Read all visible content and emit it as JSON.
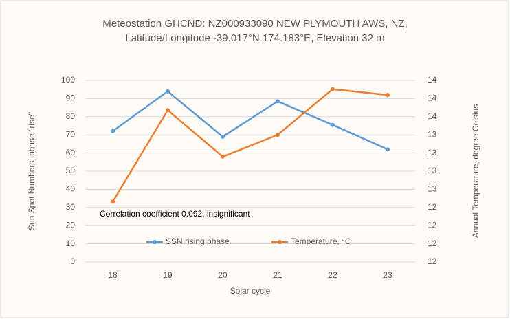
{
  "chart_data": {
    "type": "line",
    "title": [
      "Meteostation GHCND: NZ000933090  NEW PLYMOUTH AWS, NZ,",
      "Latitude/Longitude -39.017°N 174.183°E, Elevation 32 m"
    ],
    "x_label": "Solar cycle",
    "y_label": "Sun Spot Numbers, phase \"rise\"",
    "y2_label": "Annual Temperature, degree Celsius",
    "annotation": "Correlation coefficient 0.092,  insignificant",
    "categories": [
      "18",
      "19",
      "20",
      "21",
      "22",
      "23"
    ],
    "series": [
      {
        "name": "SSN rising phase",
        "color": "#5b9bd5",
        "values": [
          72,
          94,
          69,
          88.5,
          75.5,
          62
        ]
      },
      {
        "name": "Temperature, °C",
        "color": "#ed7d31",
        "axis": "y2",
        "values": [
          12.33,
          13.59,
          12.95,
          13.25,
          13.88,
          13.8
        ]
      }
    ],
    "ylim": [
      0,
      100
    ],
    "yticks": [
      0,
      10,
      20,
      30,
      40,
      50,
      60,
      70,
      80,
      90,
      100
    ],
    "y2lim": [
      11.5,
      14
    ],
    "y2ticks": [
      {
        "value": 11.5,
        "label": "12"
      },
      {
        "value": 11.75,
        "label": "12"
      },
      {
        "value": 12,
        "label": "12"
      },
      {
        "value": 12.25,
        "label": "12"
      },
      {
        "value": 12.5,
        "label": "13"
      },
      {
        "value": 12.75,
        "label": "13"
      },
      {
        "value": 13,
        "label": "13"
      },
      {
        "value": 13.25,
        "label": "13"
      },
      {
        "value": 13.5,
        "label": "14"
      },
      {
        "value": 13.75,
        "label": "14"
      },
      {
        "value": 14,
        "label": "14"
      }
    ],
    "grid": true
  }
}
